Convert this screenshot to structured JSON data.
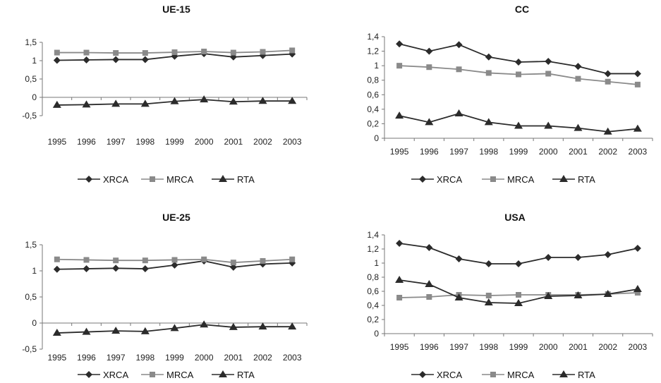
{
  "chart_data": [
    {
      "type": "line",
      "title": "UE-15",
      "categories": [
        "1995",
        "1996",
        "1997",
        "1998",
        "1999",
        "2000",
        "2001",
        "2002",
        "2003"
      ],
      "ylim": [
        -0.5,
        1.5
      ],
      "y_ticks": [
        "-0,5",
        "0",
        "0,5",
        "1",
        "1,5"
      ],
      "grid": false,
      "legend": "bottom",
      "series": [
        {
          "name": "XRCA",
          "values": [
            1.01,
            1.02,
            1.03,
            1.03,
            1.12,
            1.19,
            1.1,
            1.14,
            1.18
          ]
        },
        {
          "name": "MRCA",
          "values": [
            1.22,
            1.22,
            1.21,
            1.21,
            1.23,
            1.25,
            1.22,
            1.24,
            1.28
          ]
        },
        {
          "name": "RTA",
          "values": [
            -0.21,
            -0.2,
            -0.18,
            -0.18,
            -0.11,
            -0.06,
            -0.12,
            -0.1,
            -0.1
          ]
        }
      ]
    },
    {
      "type": "line",
      "title": "CC",
      "categories": [
        "1995",
        "1996",
        "1997",
        "1998",
        "1999",
        "2000",
        "2001",
        "2002",
        "2003"
      ],
      "ylim": [
        0,
        1.4
      ],
      "y_ticks": [
        "0",
        "0,2",
        "0,4",
        "0,6",
        "0,8",
        "1",
        "1,2",
        "1,4"
      ],
      "grid": false,
      "legend": "bottom",
      "series": [
        {
          "name": "XRCA",
          "values": [
            1.3,
            1.2,
            1.29,
            1.12,
            1.05,
            1.06,
            0.99,
            0.89,
            0.89
          ]
        },
        {
          "name": "MRCA",
          "values": [
            1.0,
            0.98,
            0.95,
            0.9,
            0.88,
            0.89,
            0.82,
            0.78,
            0.74
          ]
        },
        {
          "name": "RTA",
          "values": [
            0.31,
            0.22,
            0.34,
            0.22,
            0.17,
            0.17,
            0.14,
            0.09,
            0.13
          ]
        }
      ]
    },
    {
      "type": "line",
      "title": "UE-25",
      "categories": [
        "1995",
        "1996",
        "1997",
        "1998",
        "1999",
        "2000",
        "2001",
        "2002",
        "2003"
      ],
      "ylim": [
        -0.5,
        1.5
      ],
      "y_ticks": [
        "-0,5",
        "0",
        "0,5",
        "1",
        "1,5"
      ],
      "grid": false,
      "legend": "bottom",
      "series": [
        {
          "name": "XRCA",
          "values": [
            1.03,
            1.04,
            1.05,
            1.04,
            1.11,
            1.19,
            1.07,
            1.13,
            1.15
          ]
        },
        {
          "name": "MRCA",
          "values": [
            1.22,
            1.21,
            1.2,
            1.2,
            1.21,
            1.22,
            1.16,
            1.19,
            1.22
          ]
        },
        {
          "name": "RTA",
          "values": [
            -0.19,
            -0.17,
            -0.15,
            -0.16,
            -0.1,
            -0.03,
            -0.08,
            -0.07,
            -0.07
          ]
        }
      ]
    },
    {
      "type": "line",
      "title": "USA",
      "categories": [
        "1995",
        "1996",
        "1997",
        "1998",
        "1999",
        "2000",
        "2001",
        "2002",
        "2003"
      ],
      "ylim": [
        0,
        1.4
      ],
      "y_ticks": [
        "0",
        "0,2",
        "0,4",
        "0,6",
        "0,8",
        "1",
        "1,2",
        "1,4"
      ],
      "grid": false,
      "legend": "bottom",
      "series": [
        {
          "name": "XRCA",
          "values": [
            1.28,
            1.22,
            1.06,
            0.99,
            0.99,
            1.08,
            1.08,
            1.12,
            1.21
          ]
        },
        {
          "name": "MRCA",
          "values": [
            0.51,
            0.52,
            0.55,
            0.54,
            0.55,
            0.55,
            0.55,
            0.56,
            0.58
          ]
        },
        {
          "name": "RTA",
          "values": [
            0.76,
            0.7,
            0.51,
            0.44,
            0.43,
            0.53,
            0.54,
            0.56,
            0.63
          ]
        }
      ]
    }
  ],
  "style": {
    "XRCA": {
      "color": "#2b2b2b",
      "marker": "diamond"
    },
    "MRCA": {
      "color": "#8a8a8a",
      "marker": "square"
    },
    "RTA": {
      "color": "#2b2b2b",
      "marker": "triangle"
    }
  }
}
